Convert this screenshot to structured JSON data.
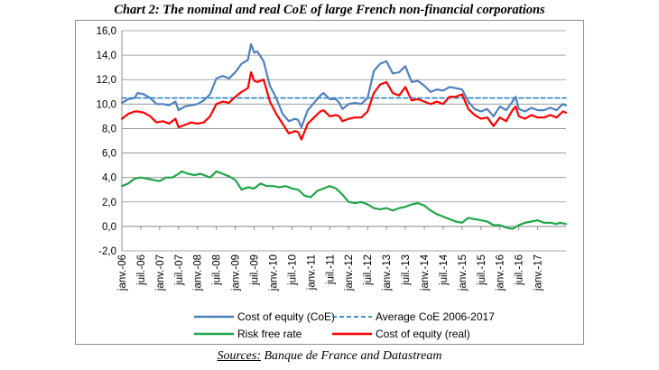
{
  "chart_data": {
    "type": "line",
    "title": "Chart 2: The nominal and real CoE of large French non-financial corporations",
    "source_label": "Sources:",
    "source_text": " Banque de France and Datastream",
    "ylim": [
      -2,
      16
    ],
    "yticks": [
      "-2,0",
      "0,0",
      "2,0",
      "4,0",
      "6,0",
      "8,0",
      "10,0",
      "12,0",
      "14,0",
      "16,0"
    ],
    "ytick_values": [
      -2,
      0,
      2,
      4,
      6,
      8,
      10,
      12,
      14,
      16
    ],
    "xticks": [
      "janv.-06",
      "juil.-06",
      "janv.-07",
      "juil.-07",
      "janv.-08",
      "juil.-08",
      "janv.-09",
      "juil.-09",
      "janv.-10",
      "juil.-10",
      "janv.-11",
      "juil.-11",
      "janv.-12",
      "juil.-12",
      "janv.-13",
      "juil.-13",
      "janv.-14",
      "juil.-14",
      "janv.-15",
      "juil.-15",
      "janv.-16",
      "juil.-16",
      "janv.-17"
    ],
    "x_start": "2006-01",
    "n_months": 142,
    "grid": "horizontal",
    "legend_position": "bottom",
    "series": [
      {
        "name": "Cost of equity (CoE)",
        "color": "#4f81bd",
        "style": "solid",
        "points": [
          [
            0,
            10.1
          ],
          [
            2,
            10.4
          ],
          [
            4,
            10.5
          ],
          [
            5,
            10.9
          ],
          [
            7,
            10.8
          ],
          [
            9,
            10.5
          ],
          [
            11,
            10.0
          ],
          [
            13,
            10.0
          ],
          [
            15,
            9.9
          ],
          [
            17,
            10.2
          ],
          [
            18,
            9.5
          ],
          [
            20,
            9.8
          ],
          [
            22,
            9.9
          ],
          [
            24,
            10.0
          ],
          [
            26,
            10.3
          ],
          [
            28,
            10.8
          ],
          [
            30,
            12.1
          ],
          [
            32,
            12.3
          ],
          [
            34,
            12.1
          ],
          [
            36,
            12.6
          ],
          [
            38,
            13.3
          ],
          [
            40,
            13.6
          ],
          [
            41,
            14.9
          ],
          [
            42,
            14.2
          ],
          [
            43,
            14.3
          ],
          [
            45,
            13.5
          ],
          [
            47,
            11.5
          ],
          [
            49,
            10.5
          ],
          [
            51,
            9.2
          ],
          [
            53,
            8.6
          ],
          [
            55,
            8.8
          ],
          [
            56,
            8.7
          ],
          [
            57,
            8.1
          ],
          [
            59,
            9.5
          ],
          [
            61,
            10.1
          ],
          [
            63,
            10.7
          ],
          [
            64,
            10.9
          ],
          [
            66,
            10.4
          ],
          [
            68,
            10.4
          ],
          [
            69,
            10.1
          ],
          [
            70,
            9.6
          ],
          [
            72,
            10.0
          ],
          [
            74,
            10.1
          ],
          [
            76,
            10.0
          ],
          [
            78,
            10.5
          ],
          [
            80,
            12.7
          ],
          [
            82,
            13.3
          ],
          [
            84,
            13.5
          ],
          [
            86,
            12.5
          ],
          [
            88,
            12.6
          ],
          [
            90,
            13.1
          ],
          [
            92,
            11.8
          ],
          [
            94,
            11.9
          ],
          [
            96,
            11.5
          ],
          [
            98,
            11.0
          ],
          [
            100,
            11.2
          ],
          [
            102,
            11.1
          ],
          [
            104,
            11.4
          ],
          [
            106,
            11.3
          ],
          [
            108,
            11.2
          ],
          [
            110,
            10.2
          ],
          [
            112,
            9.6
          ],
          [
            114,
            9.4
          ],
          [
            116,
            9.6
          ],
          [
            118,
            9.0
          ],
          [
            120,
            9.8
          ],
          [
            122,
            9.5
          ],
          [
            124,
            10.2
          ],
          [
            125,
            10.6
          ],
          [
            126,
            9.6
          ],
          [
            128,
            9.4
          ],
          [
            130,
            9.7
          ],
          [
            132,
            9.5
          ],
          [
            134,
            9.5
          ],
          [
            136,
            9.7
          ],
          [
            138,
            9.5
          ],
          [
            140,
            10.0
          ],
          [
            141,
            9.9
          ]
        ]
      },
      {
        "name": "Average CoE 2006-2017",
        "color": "#2e84c4",
        "style": "dashed",
        "points": [
          [
            0,
            10.5
          ],
          [
            141,
            10.5
          ]
        ]
      },
      {
        "name": "Risk free rate",
        "color": "#1fa64a",
        "style": "solid",
        "points": [
          [
            0,
            3.3
          ],
          [
            2,
            3.5
          ],
          [
            4,
            3.9
          ],
          [
            6,
            4.0
          ],
          [
            8,
            3.9
          ],
          [
            10,
            3.8
          ],
          [
            12,
            3.7
          ],
          [
            14,
            4.0
          ],
          [
            16,
            4.0
          ],
          [
            18,
            4.3
          ],
          [
            19,
            4.5
          ],
          [
            21,
            4.3
          ],
          [
            23,
            4.2
          ],
          [
            25,
            4.3
          ],
          [
            27,
            4.1
          ],
          [
            28,
            4.0
          ],
          [
            30,
            4.5
          ],
          [
            32,
            4.3
          ],
          [
            34,
            4.1
          ],
          [
            36,
            3.8
          ],
          [
            38,
            3.0
          ],
          [
            40,
            3.2
          ],
          [
            42,
            3.1
          ],
          [
            44,
            3.5
          ],
          [
            46,
            3.3
          ],
          [
            48,
            3.3
          ],
          [
            50,
            3.2
          ],
          [
            52,
            3.3
          ],
          [
            54,
            3.1
          ],
          [
            56,
            3.0
          ],
          [
            58,
            2.5
          ],
          [
            60,
            2.4
          ],
          [
            62,
            2.9
          ],
          [
            64,
            3.1
          ],
          [
            66,
            3.3
          ],
          [
            68,
            3.1
          ],
          [
            70,
            2.6
          ],
          [
            72,
            2.0
          ],
          [
            74,
            1.9
          ],
          [
            76,
            2.0
          ],
          [
            78,
            1.8
          ],
          [
            80,
            1.5
          ],
          [
            82,
            1.4
          ],
          [
            84,
            1.5
          ],
          [
            86,
            1.3
          ],
          [
            88,
            1.5
          ],
          [
            90,
            1.6
          ],
          [
            92,
            1.8
          ],
          [
            94,
            1.9
          ],
          [
            96,
            1.7
          ],
          [
            98,
            1.3
          ],
          [
            100,
            1.0
          ],
          [
            102,
            0.8
          ],
          [
            104,
            0.6
          ],
          [
            106,
            0.4
          ],
          [
            108,
            0.3
          ],
          [
            110,
            0.7
          ],
          [
            112,
            0.6
          ],
          [
            114,
            0.5
          ],
          [
            116,
            0.4
          ],
          [
            118,
            0.1
          ],
          [
            120,
            0.1
          ],
          [
            122,
            -0.1
          ],
          [
            124,
            -0.2
          ],
          [
            126,
            0.1
          ],
          [
            128,
            0.3
          ],
          [
            130,
            0.4
          ],
          [
            132,
            0.5
          ],
          [
            134,
            0.3
          ],
          [
            136,
            0.3
          ],
          [
            138,
            0.2
          ],
          [
            139,
            0.3
          ],
          [
            141,
            0.2
          ]
        ]
      },
      {
        "name": "Cost of equity (real)",
        "color": "#ff0000",
        "style": "solid",
        "points": [
          [
            0,
            8.8
          ],
          [
            2,
            9.2
          ],
          [
            4,
            9.4
          ],
          [
            5,
            9.4
          ],
          [
            7,
            9.3
          ],
          [
            9,
            9.0
          ],
          [
            11,
            8.5
          ],
          [
            13,
            8.6
          ],
          [
            15,
            8.4
          ],
          [
            17,
            8.8
          ],
          [
            18,
            8.1
          ],
          [
            20,
            8.3
          ],
          [
            22,
            8.5
          ],
          [
            24,
            8.4
          ],
          [
            26,
            8.5
          ],
          [
            28,
            9.0
          ],
          [
            30,
            10.0
          ],
          [
            32,
            10.2
          ],
          [
            34,
            10.1
          ],
          [
            36,
            10.6
          ],
          [
            38,
            11.0
          ],
          [
            40,
            11.3
          ],
          [
            41,
            12.6
          ],
          [
            42,
            11.9
          ],
          [
            43,
            11.8
          ],
          [
            45,
            12.0
          ],
          [
            47,
            10.2
          ],
          [
            49,
            9.2
          ],
          [
            51,
            8.4
          ],
          [
            53,
            7.6
          ],
          [
            55,
            7.8
          ],
          [
            56,
            7.7
          ],
          [
            57,
            7.1
          ],
          [
            59,
            8.4
          ],
          [
            61,
            8.9
          ],
          [
            63,
            9.4
          ],
          [
            64,
            9.5
          ],
          [
            66,
            9.0
          ],
          [
            68,
            9.1
          ],
          [
            69,
            9.0
          ],
          [
            70,
            8.6
          ],
          [
            72,
            8.8
          ],
          [
            74,
            8.9
          ],
          [
            76,
            8.9
          ],
          [
            78,
            9.4
          ],
          [
            80,
            10.9
          ],
          [
            82,
            11.6
          ],
          [
            84,
            11.8
          ],
          [
            86,
            10.9
          ],
          [
            88,
            10.7
          ],
          [
            90,
            11.4
          ],
          [
            92,
            10.3
          ],
          [
            94,
            10.4
          ],
          [
            96,
            10.2
          ],
          [
            98,
            10.0
          ],
          [
            100,
            10.2
          ],
          [
            102,
            10.0
          ],
          [
            104,
            10.6
          ],
          [
            106,
            10.6
          ],
          [
            108,
            10.8
          ],
          [
            110,
            9.6
          ],
          [
            112,
            9.1
          ],
          [
            114,
            8.8
          ],
          [
            116,
            8.9
          ],
          [
            118,
            8.2
          ],
          [
            120,
            8.9
          ],
          [
            122,
            8.6
          ],
          [
            124,
            9.5
          ],
          [
            125,
            9.8
          ],
          [
            126,
            9.0
          ],
          [
            128,
            8.8
          ],
          [
            130,
            9.1
          ],
          [
            132,
            8.9
          ],
          [
            134,
            8.9
          ],
          [
            136,
            9.1
          ],
          [
            138,
            8.9
          ],
          [
            140,
            9.4
          ],
          [
            141,
            9.3
          ]
        ]
      }
    ]
  }
}
